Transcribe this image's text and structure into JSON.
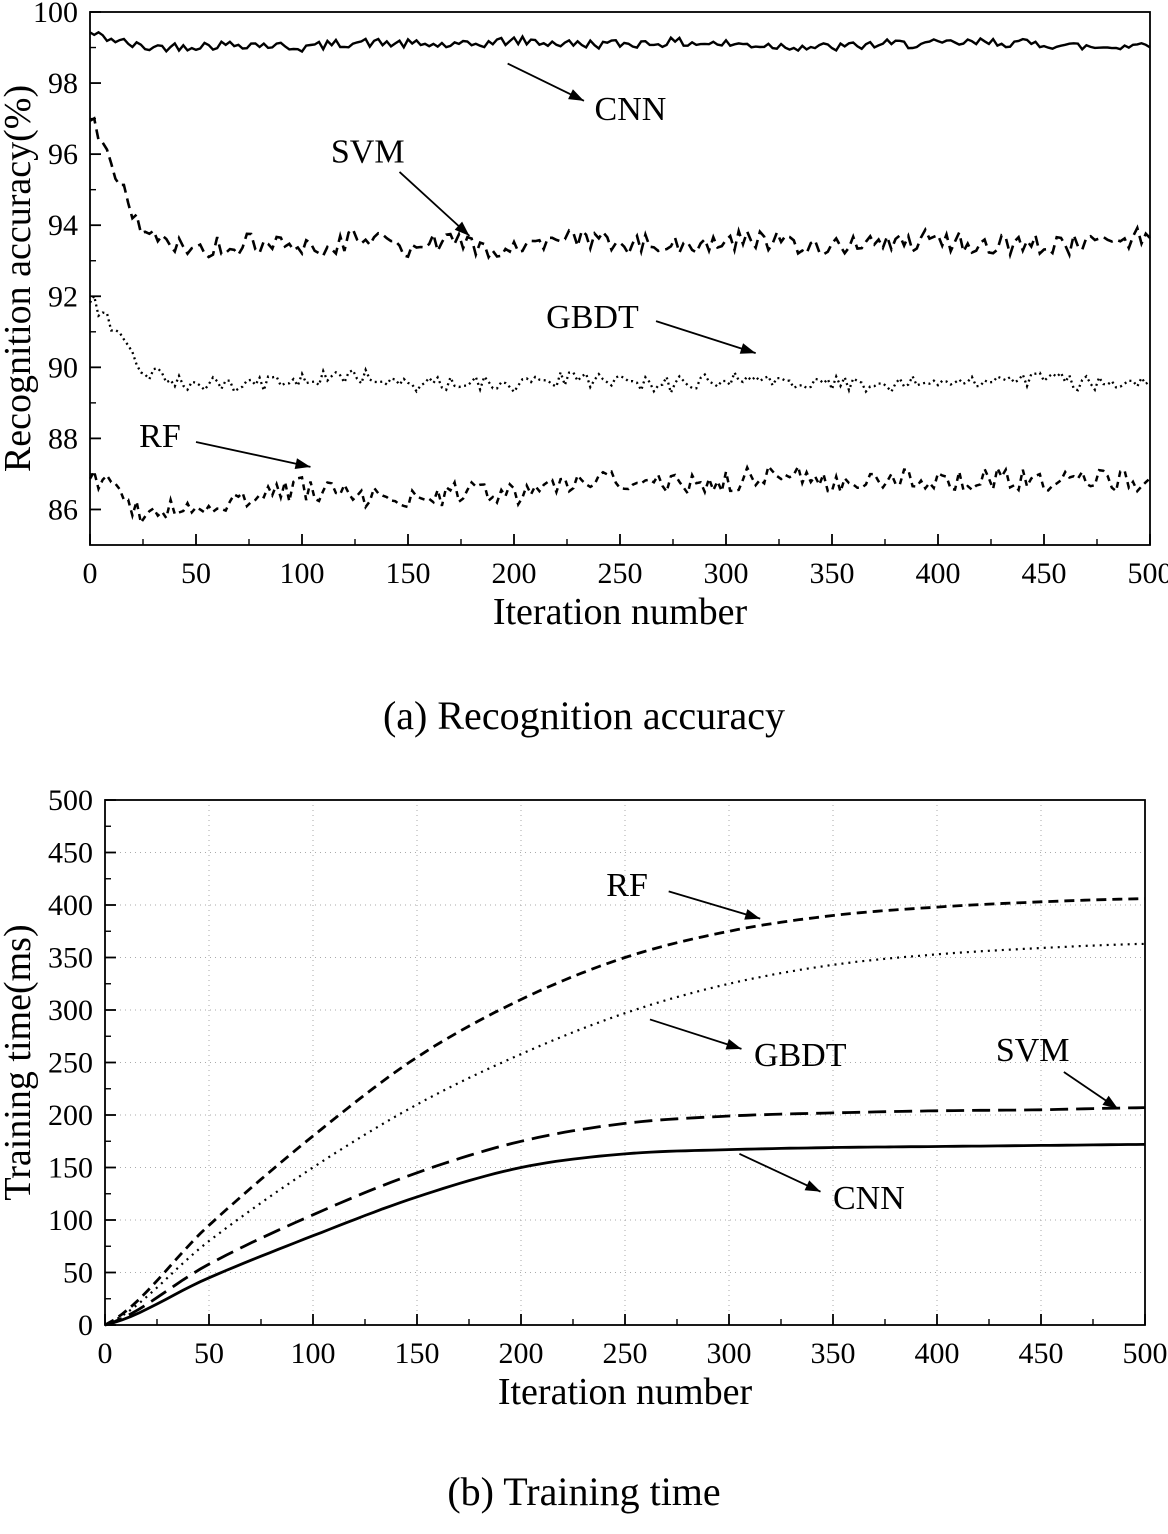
{
  "page": {
    "background": "#ffffff",
    "ink": "#000000"
  },
  "captions": {
    "a": "(a) Recognition accuracy",
    "b": "(b) Training time"
  },
  "chart_data": [
    {
      "id": "recognition-accuracy",
      "type": "line",
      "title": "",
      "xlabel": "Iteration number",
      "ylabel": "Recognition accuracy(%)",
      "xlim": [
        0,
        500
      ],
      "ylim": [
        85,
        100
      ],
      "xticks": [
        0,
        50,
        100,
        150,
        200,
        250,
        300,
        350,
        400,
        450,
        500
      ],
      "yticks": [
        86,
        88,
        90,
        92,
        94,
        96,
        98,
        100
      ],
      "grid": false,
      "legend_position": "annotations-on-plot",
      "x": [
        0,
        25,
        50,
        75,
        100,
        125,
        150,
        175,
        200,
        225,
        250,
        275,
        300,
        325,
        350,
        375,
        400,
        425,
        450,
        475,
        500
      ],
      "series": [
        {
          "name": "CNN",
          "style": "solid",
          "dash": "",
          "width": 2.4,
          "noise": 0.13,
          "values": [
            99.4,
            99.0,
            99.05,
            99.1,
            99.0,
            99.15,
            99.1,
            99.05,
            99.2,
            99.1,
            99.1,
            99.15,
            99.1,
            99.05,
            99.0,
            99.1,
            99.1,
            99.15,
            99.1,
            99.0,
            99.1
          ]
        },
        {
          "name": "SVM",
          "style": "dashed",
          "dash": "10 6",
          "width": 2.6,
          "noise": 0.3,
          "values": [
            97.0,
            93.7,
            93.3,
            93.5,
            93.3,
            93.6,
            93.4,
            93.5,
            93.3,
            93.6,
            93.5,
            93.4,
            93.6,
            93.5,
            93.4,
            93.5,
            93.6,
            93.4,
            93.5,
            93.4,
            93.8
          ]
        },
        {
          "name": "GBDT",
          "style": "dotted",
          "dash": "2 3.5",
          "width": 2.3,
          "noise": 0.22,
          "values": [
            92.0,
            89.9,
            89.5,
            89.5,
            89.6,
            89.8,
            89.5,
            89.6,
            89.5,
            89.7,
            89.6,
            89.5,
            89.7,
            89.5,
            89.6,
            89.5,
            89.6,
            89.5,
            89.7,
            89.5,
            89.6
          ]
        },
        {
          "name": "RF",
          "style": "short-dash",
          "dash": "6 5",
          "width": 2.5,
          "noise": 0.32,
          "values": [
            87.0,
            85.9,
            86.0,
            86.3,
            86.6,
            86.4,
            86.2,
            86.5,
            86.4,
            86.8,
            86.9,
            86.7,
            86.8,
            87.0,
            86.8,
            86.9,
            86.8,
            86.9,
            86.8,
            86.8,
            86.8
          ]
        }
      ],
      "annotations": [
        {
          "text": "CNN",
          "x": 238,
          "y": 97.3,
          "anchor": "start",
          "ax1": 197,
          "ay1": 98.55,
          "ax2": 233,
          "ay2": 97.5
        },
        {
          "text": "SVM",
          "x": 131,
          "y": 96.1,
          "anchor": "middle",
          "ax1": 146,
          "ay1": 95.5,
          "ax2": 179,
          "ay2": 93.7
        },
        {
          "text": "GBDT",
          "x": 237,
          "y": 91.45,
          "anchor": "middle",
          "ax1": 267,
          "ay1": 91.3,
          "ax2": 314,
          "ay2": 90.4
        },
        {
          "text": "RF",
          "x": 33,
          "y": 88.1,
          "anchor": "middle",
          "ax1": 50,
          "ay1": 87.9,
          "ax2": 104,
          "ay2": 87.2
        }
      ]
    },
    {
      "id": "training-time",
      "type": "line",
      "title": "",
      "xlabel": "Iteration number",
      "ylabel": "Training time(ms)",
      "xlim": [
        0,
        500
      ],
      "ylim": [
        0,
        500
      ],
      "xticks": [
        0,
        50,
        100,
        150,
        200,
        250,
        300,
        350,
        400,
        450,
        500
      ],
      "yticks": [
        0,
        50,
        100,
        150,
        200,
        250,
        300,
        350,
        400,
        450,
        500
      ],
      "grid": true,
      "legend_position": "annotations-on-plot",
      "x": [
        0,
        50,
        100,
        150,
        200,
        250,
        300,
        350,
        400,
        450,
        500
      ],
      "series": [
        {
          "name": "RF",
          "style": "short-dash",
          "dash": "10 6",
          "width": 2.8,
          "noise": 0,
          "values": [
            0,
            95,
            180,
            255,
            310,
            350,
            375,
            390,
            398,
            403,
            406
          ]
        },
        {
          "name": "GBDT",
          "style": "dotted",
          "dash": "2 5",
          "width": 2.2,
          "noise": 0,
          "values": [
            0,
            80,
            150,
            210,
            258,
            297,
            325,
            343,
            353,
            359,
            363
          ]
        },
        {
          "name": "SVM",
          "style": "long-dash",
          "dash": "18 8",
          "width": 2.8,
          "noise": 0,
          "values": [
            0,
            58,
            105,
            145,
            175,
            192,
            199,
            202,
            204,
            205,
            207
          ]
        },
        {
          "name": "CNN",
          "style": "solid",
          "dash": "",
          "width": 2.8,
          "noise": 0,
          "values": [
            0,
            45,
            85,
            122,
            150,
            163,
            167,
            169,
            170,
            171,
            172
          ]
        }
      ],
      "annotations": [
        {
          "text": "RF",
          "x": 251,
          "y": 420,
          "anchor": "middle",
          "ax1": 271,
          "ay1": 413,
          "ax2": 315,
          "ay2": 387
        },
        {
          "text": "GBDT",
          "x": 312,
          "y": 258,
          "anchor": "start",
          "ax1": 262,
          "ay1": 291,
          "ax2": 306,
          "ay2": 263
        },
        {
          "text": "SVM",
          "x": 446,
          "y": 263,
          "anchor": "middle",
          "ax1": 461,
          "ay1": 241,
          "ax2": 487,
          "ay2": 206
        },
        {
          "text": "CNN",
          "x": 350,
          "y": 122,
          "anchor": "start",
          "ax1": 305,
          "ay1": 163,
          "ax2": 344,
          "ay2": 127
        }
      ]
    }
  ]
}
